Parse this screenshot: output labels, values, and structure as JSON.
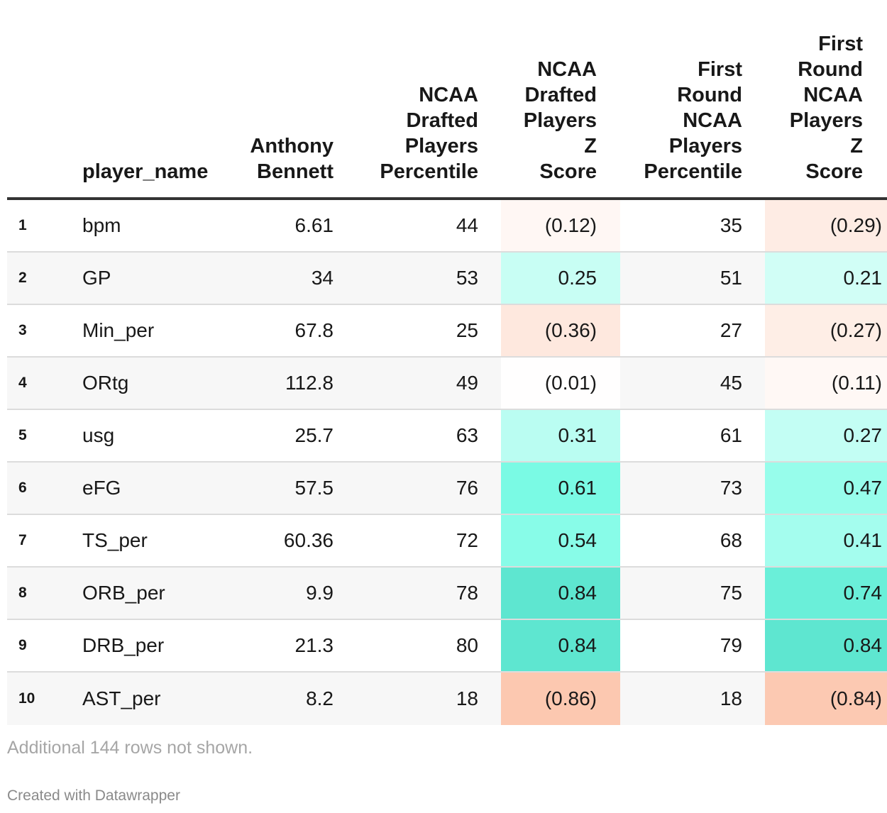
{
  "chart_data": {
    "type": "table",
    "columns": [
      {
        "key": "idx",
        "label": ""
      },
      {
        "key": "name",
        "label": "player_name"
      },
      {
        "key": "val",
        "label": "Anthony\nBennett"
      },
      {
        "key": "pct1",
        "label": "NCAA\nDrafted\nPlayers\nPercentile"
      },
      {
        "key": "z1",
        "label": "NCAA\nDrafted\nPlayers\nZ\nScore"
      },
      {
        "key": "pct2",
        "label": "First\nRound\nNCAA\nPlayers\nPercentile"
      },
      {
        "key": "z2",
        "label": "First\nRound\nNCAA\nPlayers\nZ\nScore"
      }
    ],
    "rows": [
      {
        "idx": "1",
        "name": "bpm",
        "val": "6.61",
        "pct1": "44",
        "z1": "(0.12)",
        "pct2": "35",
        "z2": "(0.29)",
        "z1_value": -0.12,
        "z2_value": -0.29
      },
      {
        "idx": "2",
        "name": "GP",
        "val": "34",
        "pct1": "53",
        "z1": "0.25",
        "pct2": "51",
        "z2": "0.21",
        "z1_value": 0.25,
        "z2_value": 0.21
      },
      {
        "idx": "3",
        "name": "Min_per",
        "val": "67.8",
        "pct1": "25",
        "z1": "(0.36)",
        "pct2": "27",
        "z2": "(0.27)",
        "z1_value": -0.36,
        "z2_value": -0.27
      },
      {
        "idx": "4",
        "name": "ORtg",
        "val": "112.8",
        "pct1": "49",
        "z1": "(0.01)",
        "pct2": "45",
        "z2": "(0.11)",
        "z1_value": -0.01,
        "z2_value": -0.11
      },
      {
        "idx": "5",
        "name": "usg",
        "val": "25.7",
        "pct1": "63",
        "z1": "0.31",
        "pct2": "61",
        "z2": "0.27",
        "z1_value": 0.31,
        "z2_value": 0.27
      },
      {
        "idx": "6",
        "name": "eFG",
        "val": "57.5",
        "pct1": "76",
        "z1": "0.61",
        "pct2": "73",
        "z2": "0.47",
        "z1_value": 0.61,
        "z2_value": 0.47
      },
      {
        "idx": "7",
        "name": "TS_per",
        "val": "60.36",
        "pct1": "72",
        "z1": "0.54",
        "pct2": "68",
        "z2": "0.41",
        "z1_value": 0.54,
        "z2_value": 0.41
      },
      {
        "idx": "8",
        "name": "ORB_per",
        "val": "9.9",
        "pct1": "78",
        "z1": "0.84",
        "pct2": "75",
        "z2": "0.74",
        "z1_value": 0.84,
        "z2_value": 0.74
      },
      {
        "idx": "9",
        "name": "DRB_per",
        "val": "21.3",
        "pct1": "80",
        "z1": "0.84",
        "pct2": "79",
        "z2": "0.84",
        "z1_value": 0.84,
        "z2_value": 0.84
      },
      {
        "idx": "10",
        "name": "AST_per",
        "val": "8.2",
        "pct1": "18",
        "z1": "(0.86)",
        "pct2": "18",
        "z2": "(0.84)",
        "z1_value": -0.86,
        "z2_value": -0.84
      }
    ],
    "color_scale": {
      "negative": "#fcc8b0",
      "neutral": "#ffffff",
      "positive": "#5ee6d0",
      "positive_mid": "#7dfce6"
    }
  },
  "notes": {
    "more_rows": "Additional 144 rows not shown.",
    "credit": "Created with Datawrapper"
  }
}
